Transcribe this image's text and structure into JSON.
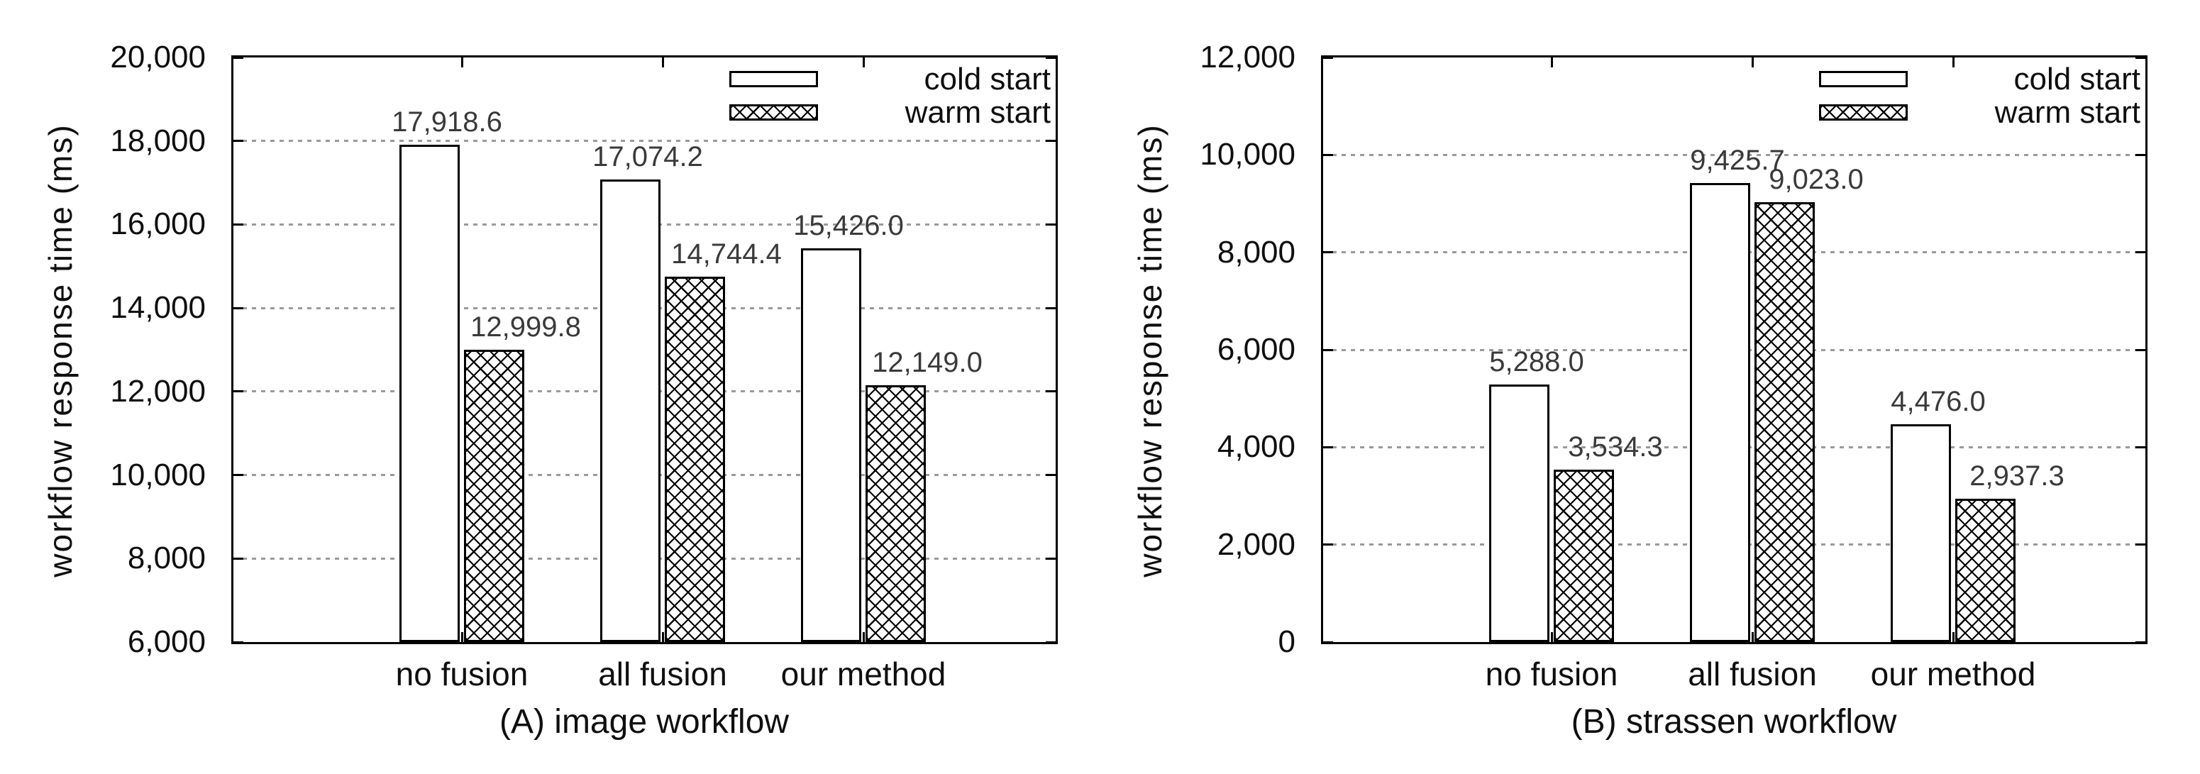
{
  "figure": {
    "background_color": "#ffffff",
    "axis_color": "#000000",
    "grid_color": "#9a9a9a",
    "text_color": "#0f0f0f",
    "value_label_color": "#3a3a3a",
    "bar_fill_color": "#ffffff",
    "hatch_color": "#000000"
  },
  "chart_data": [
    {
      "type": "bar",
      "panel_label": "A",
      "title": "(A) image workflow",
      "ylabel": "workflow response time (ms)",
      "xlabel": "",
      "categories": [
        "no fusion",
        "all fusion",
        "our method"
      ],
      "series": [
        {
          "name": "cold start",
          "pattern": "plain",
          "values": [
            17918.6,
            17074.2,
            15426.0
          ],
          "value_labels": [
            "17,918.6",
            "17,074.2",
            "15,426.0"
          ]
        },
        {
          "name": "warm start",
          "pattern": "crosshatch",
          "values": [
            12999.8,
            14744.4,
            12149.0
          ],
          "value_labels": [
            "12,999.8",
            "14,744.4",
            "12,149.0"
          ]
        }
      ],
      "ylim": [
        6000,
        20000
      ],
      "ytick_step": 2000,
      "ytick_labels": [
        "6,000",
        "8,000",
        "10,000",
        "12,000",
        "14,000",
        "16,000",
        "18,000",
        "20,000"
      ],
      "grid": "horizontal dotted",
      "legend_position": "top-right inside"
    },
    {
      "type": "bar",
      "panel_label": "B",
      "title": "(B) strassen workflow",
      "ylabel": "workflow response time (ms)",
      "xlabel": "",
      "categories": [
        "no fusion",
        "all fusion",
        "our method"
      ],
      "series": [
        {
          "name": "cold start",
          "pattern": "plain",
          "values": [
            5288.0,
            9425.7,
            4476.0
          ],
          "value_labels": [
            "5,288.0",
            "9,425.7",
            "4,476.0"
          ]
        },
        {
          "name": "warm start",
          "pattern": "crosshatch",
          "values": [
            3534.3,
            9023.0,
            2937.3
          ],
          "value_labels": [
            "3,534.3",
            "9,023.0",
            "2,937.3"
          ]
        }
      ],
      "ylim": [
        0,
        12000
      ],
      "ytick_step": 2000,
      "ytick_labels": [
        "0",
        "2,000",
        "4,000",
        "6,000",
        "8,000",
        "10,000",
        "12,000"
      ],
      "grid": "horizontal dotted",
      "legend_position": "top-right inside"
    }
  ]
}
